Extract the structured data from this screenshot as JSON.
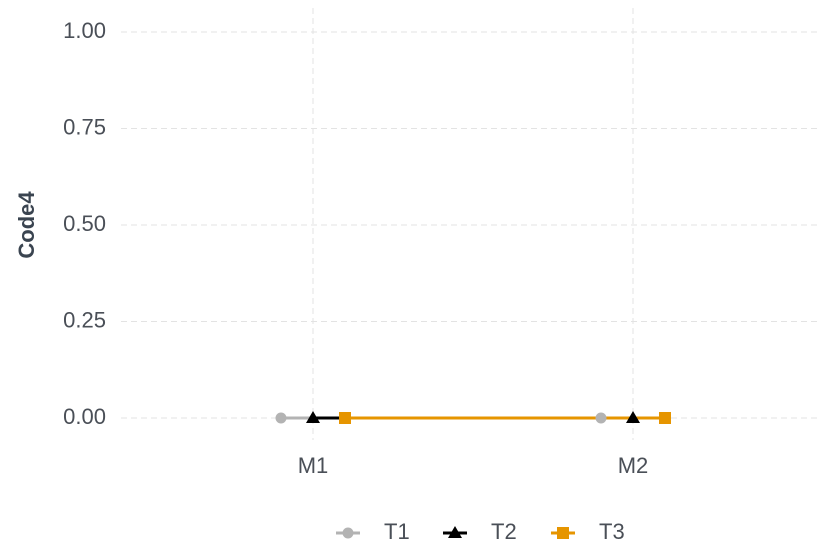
{
  "chart_data": {
    "type": "line",
    "ylabel": "Code4",
    "categories": [
      "M1",
      "M2"
    ],
    "series": [
      {
        "name": "T1",
        "color": "#b3b3b3",
        "marker": "circle",
        "values": [
          0,
          0
        ]
      },
      {
        "name": "T2",
        "color": "#000000",
        "marker": "triangle",
        "values": [
          0,
          0
        ]
      },
      {
        "name": "T3",
        "color": "#e69500",
        "marker": "square",
        "values": [
          0,
          0
        ]
      }
    ],
    "ylim": [
      0,
      1
    ],
    "yticks": [
      {
        "value": 0,
        "label": "0.00"
      },
      {
        "value": 0.25,
        "label": "0.25"
      },
      {
        "value": 0.5,
        "label": "0.50"
      },
      {
        "value": 0.75,
        "label": "0.75"
      },
      {
        "value": 1,
        "label": "1.00"
      }
    ],
    "grid": true,
    "legend": "bottom"
  }
}
